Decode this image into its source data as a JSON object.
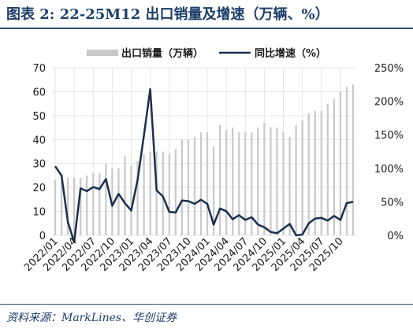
{
  "title": "图表 2:  22-25M12 出口销量及增速（万辆、%）",
  "source": "资料来源：MarkLines、华创证券",
  "chart_data": {
    "type": "bar+line",
    "legend_position": "top",
    "grid": true,
    "colors": {
      "bar": "#c9c9c9",
      "line": "#1c2f4f"
    },
    "x_ticks": [
      "2022/01",
      "2022/04",
      "2022/07",
      "2022/10",
      "2023/01",
      "2023/04",
      "2023/07",
      "2023/10",
      "2024/01",
      "2024/04",
      "2024/07",
      "2024/10",
      "2025/01",
      "2025/04",
      "2025/07",
      "2025/10"
    ],
    "y_left": {
      "ylim": [
        0,
        70
      ],
      "ticks": [
        "0",
        "10",
        "20",
        "30",
        "40",
        "50",
        "60",
        "70"
      ]
    },
    "y_right": {
      "ylim": [
        0,
        250
      ],
      "ticks": [
        "0%",
        "50%",
        "100%",
        "150%",
        "200%",
        "250%"
      ]
    },
    "categories": [
      "2022/01",
      "2022/02",
      "2022/03",
      "2022/04",
      "2022/05",
      "2022/06",
      "2022/07",
      "2022/08",
      "2022/09",
      "2022/10",
      "2022/11",
      "2022/12",
      "2023/01",
      "2023/02",
      "2023/03",
      "2023/04",
      "2023/05",
      "2023/06",
      "2023/07",
      "2023/08",
      "2023/09",
      "2023/10",
      "2023/11",
      "2023/12",
      "2024/01",
      "2024/02",
      "2024/03",
      "2024/04",
      "2024/05",
      "2024/06",
      "2024/07",
      "2024/08",
      "2024/09",
      "2024/10",
      "2024/11",
      "2024/12",
      "2025/01",
      "2025/02",
      "2025/03",
      "2025/04",
      "2025/05",
      "2025/06",
      "2025/07",
      "2025/08",
      "2025/09",
      "2025/10",
      "2025/11",
      "2025/12"
    ],
    "series": [
      {
        "name": "出口销量（万辆）",
        "axis": "left",
        "type": "bar",
        "values": [
          23,
          23,
          24,
          24,
          24,
          25,
          26,
          26,
          30,
          28,
          28,
          33,
          29,
          31,
          34,
          35,
          35,
          35,
          34,
          36,
          40,
          40,
          41,
          43,
          43,
          37,
          46,
          44,
          45,
          43,
          43,
          43,
          45,
          47,
          45,
          45,
          43,
          41,
          46,
          48,
          51,
          52,
          52,
          55,
          57,
          60,
          62,
          63
        ]
      },
      {
        "name": "同比增速（%）",
        "axis": "right",
        "type": "line",
        "values": [
          103,
          89,
          20,
          -10,
          70,
          66,
          72,
          69,
          84,
          44,
          62,
          48,
          37,
          83,
          149,
          218,
          67,
          58,
          35,
          34,
          52,
          51,
          47,
          53,
          47,
          16,
          40,
          36,
          24,
          30,
          23,
          27,
          16,
          12,
          5,
          3,
          10,
          17,
          0,
          1,
          18,
          25,
          26,
          22,
          29,
          23,
          48,
          50
        ]
      }
    ]
  }
}
